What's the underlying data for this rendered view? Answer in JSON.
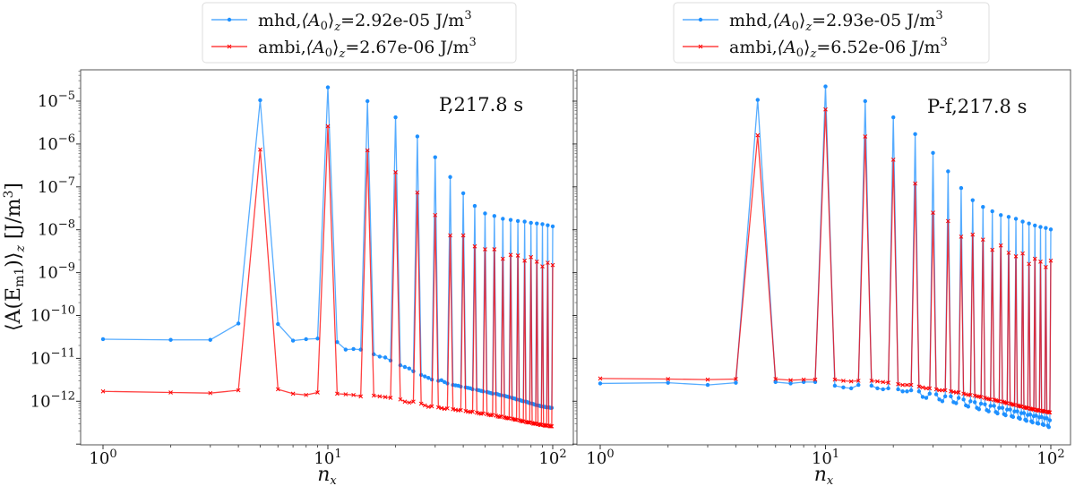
{
  "chart_data": [
    {
      "type": "line",
      "panel": "left",
      "annotation": "P,217.8 s",
      "xlabel": {
        "base": "n",
        "sub": "x"
      },
      "ylabel": {
        "open": "⟨A(E",
        "sub1": "m1",
        "close": ")⟩",
        "sub2": "z",
        "unit": " [J/m",
        "unit_exp": "3",
        "unit_close": "]"
      },
      "xscale": "log",
      "yscale": "log",
      "xlim": [
        0.77,
        123
      ],
      "ylim": [
        9.5e-14,
        5.4e-05
      ],
      "x_ticks": [
        {
          "base": "10",
          "exp": "0",
          "value": 1
        },
        {
          "base": "10",
          "exp": "1",
          "value": 10
        },
        {
          "base": "10",
          "exp": "2",
          "value": 100
        }
      ],
      "y_ticks": [
        {
          "base": "10",
          "exp": "−5",
          "value": -5
        },
        {
          "base": "10",
          "exp": "−6",
          "value": -6
        },
        {
          "base": "10",
          "exp": "−7",
          "value": -7
        },
        {
          "base": "10",
          "exp": "−8",
          "value": -8
        },
        {
          "base": "10",
          "exp": "−9",
          "value": -9
        },
        {
          "base": "10",
          "exp": "−10",
          "value": -10
        },
        {
          "base": "10",
          "exp": "−11",
          "value": -11
        },
        {
          "base": "10",
          "exp": "−12",
          "value": -12
        }
      ],
      "show_y_tick_labels": true,
      "legend_placement": "top-center-outside",
      "x_note": "n = 1..100; peaks at multiples of 5",
      "series": [
        {
          "name": "mhd",
          "a0_value": "2.92e-05",
          "color": "#1e90ff",
          "marker": "dot",
          "peak_values": [
            1.05e-05,
            2.1e-05,
            1e-05,
            4.2e-06,
            1.5e-06,
            4.9e-07,
            1.7e-07,
            7.1e-08,
            3.6e-08,
            2.4e-08,
            2.1e-08,
            1.8e-08,
            1.7e-08,
            1.6e-08,
            1.55e-08,
            1.45e-08,
            1.4e-08,
            1.35e-08,
            1.27e-08,
            1.2e-08
          ],
          "offpeak_values": [
            2.8e-11,
            2.7e-11,
            2.7e-11,
            6.5e-11,
            6.3e-11,
            2.6e-11,
            2.8e-11,
            2.9e-11,
            2.4e-11,
            1.6e-11,
            1.65e-11,
            1.6e-11,
            1.25e-11,
            1.1e-11,
            1.05e-11,
            8.9e-12,
            6.9e-12,
            6.3e-12,
            5.8e-12,
            5e-12,
            4.1e-12,
            3.8e-12,
            3.5e-12,
            3.2e-12,
            3e-12,
            3.1e-12,
            2.8e-12,
            2.6e-12,
            2.4e-12,
            2.35e-12,
            2.3e-12,
            2.2e-12,
            2.1e-12,
            2.05e-12,
            2e-12,
            1.9e-12,
            1.85e-12,
            1.8e-12,
            1.75e-12,
            1.7e-12,
            1.65e-12,
            1.6e-12,
            1.55e-12,
            1.5e-12,
            1.5e-12,
            1.45e-12,
            1.4e-12,
            1.38e-12,
            1.35e-12,
            1.3e-12,
            1.28e-12,
            1.25e-12,
            1.2e-12,
            1.17e-12,
            1.15e-12,
            1.1e-12,
            1.08e-12,
            1.05e-12,
            1.02e-12,
            1e-12,
            9.8e-13,
            9.5e-13,
            9.3e-13,
            9e-13,
            8.8e-13,
            8.6e-13,
            8.4e-13,
            8.2e-13,
            8e-13,
            7.9e-13,
            7.7e-13,
            7.6e-13,
            7.5e-13,
            7.4e-13,
            7.3e-13,
            7.2e-13,
            7.2e-13,
            7.1e-13,
            7e-13,
            7e-13
          ]
        },
        {
          "name": "ambi",
          "a0_value": "2.67e-06",
          "color": "#ff0000",
          "marker": "x",
          "peak_values": [
            7.4e-07,
            2.6e-06,
            7.1e-07,
            2.2e-07,
            7.4e-08,
            2.2e-08,
            7.4e-09,
            7.4e-09,
            4.1e-09,
            3.5e-09,
            3.5e-09,
            2.1e-09,
            2.6e-09,
            2.5e-09,
            1.9e-09,
            2.3e-09,
            1.8e-09,
            1.4e-09,
            1.7e-09,
            1.5e-09
          ],
          "offpeak_values": [
            1.7e-12,
            1.6e-12,
            1.55e-12,
            1.8e-12,
            1.9e-12,
            1.5e-12,
            1.4e-12,
            1.6e-12,
            1.5e-12,
            1.45e-12,
            1.4e-12,
            1.3e-12,
            1.35e-12,
            1.3e-12,
            1.25e-12,
            1.2e-12,
            1.1e-12,
            9.8e-13,
            9.3e-13,
            9.8e-13,
            8.8e-13,
            8e-13,
            7.4e-13,
            7.6e-13,
            7.2e-13,
            6.9e-13,
            6.6e-13,
            6.8e-13,
            6.5e-13,
            6.3e-13,
            6.1e-13,
            6.2e-13,
            5.9e-13,
            5.7e-13,
            5.6e-13,
            5.7e-13,
            5.4e-13,
            5.2e-13,
            5.1e-13,
            5.2e-13,
            5e-13,
            4.8e-13,
            4.7e-13,
            4.8e-13,
            4.6e-13,
            4.4e-13,
            4.3e-13,
            4.4e-13,
            4.2e-13,
            4.1e-13,
            4e-13,
            4e-13,
            3.9e-13,
            3.8e-13,
            3.7e-13,
            3.7e-13,
            3.6e-13,
            3.5e-13,
            3.4e-13,
            3.4e-13,
            3.3e-13,
            3.2e-13,
            3.2e-13,
            3.2e-13,
            3.1e-13,
            3e-13,
            3e-13,
            3e-13,
            2.9e-13,
            2.9e-13,
            2.8e-13,
            2.8e-13,
            2.8e-13,
            2.7e-13,
            2.7e-13,
            2.7e-13,
            2.7e-13,
            2.6e-13,
            2.6e-13,
            2.6e-13
          ]
        }
      ]
    },
    {
      "type": "line",
      "panel": "right",
      "annotation": "P-f,217.8 s",
      "xlabel": {
        "base": "n",
        "sub": "x"
      },
      "xscale": "log",
      "yscale": "log",
      "xlim": [
        0.77,
        123
      ],
      "ylim": [
        9.5e-14,
        5.4e-05
      ],
      "x_ticks": [
        {
          "base": "10",
          "exp": "0",
          "value": 1
        },
        {
          "base": "10",
          "exp": "1",
          "value": 10
        },
        {
          "base": "10",
          "exp": "2",
          "value": 100
        }
      ],
      "show_y_tick_labels": false,
      "legend_placement": "top-center-outside",
      "x_note": "n = 1..100; peaks at multiples of 5",
      "series": [
        {
          "name": "mhd",
          "a0_value": "2.93e-05",
          "color": "#1e90ff",
          "marker": "dot",
          "peak_values": [
            1.07e-05,
            2.2e-05,
            1e-05,
            4.2e-06,
            1.7e-06,
            6.2e-07,
            2.3e-07,
            9.4e-08,
            4.9e-08,
            3.4e-08,
            2.7e-08,
            2.2e-08,
            2e-08,
            1.8e-08,
            1.55e-08,
            1.4e-08,
            1.26e-08,
            1.16e-08,
            1.1e-08,
            1.02e-08
          ],
          "offpeak_values": [
            2.6e-12,
            2.7e-12,
            2.4e-12,
            2.7e-12,
            2.8e-12,
            2.6e-12,
            2.8e-12,
            2.8e-12,
            2.3e-12,
            2.1e-12,
            2e-12,
            2.4e-12,
            2.3e-12,
            2e-12,
            1.9e-12,
            2e-12,
            1.9e-12,
            1.7e-12,
            1.7e-12,
            1.8e-12,
            1.7e-12,
            1.26e-12,
            1.2e-12,
            1.5e-12,
            1.45e-12,
            1.1e-12,
            1e-12,
            1.3e-12,
            1.3e-12,
            9.5e-13,
            9e-13,
            1.2e-12,
            1.1e-12,
            8e-13,
            7.5e-13,
            1e-12,
            9.5e-13,
            7e-13,
            6.5e-13,
            8.8e-13,
            8.5e-13,
            6.2e-13,
            5.8e-13,
            7.8e-13,
            7.8e-13,
            5.6e-13,
            5.2e-13,
            7e-13,
            7e-13,
            5e-13,
            4.7e-13,
            6.4e-13,
            6.4e-13,
            4.5e-13,
            4.3e-13,
            5.8e-13,
            5.8e-13,
            4.1e-13,
            3.9e-13,
            5.3e-13,
            5.3e-13,
            3.7e-13,
            3.5e-13,
            4.8e-13,
            4.9e-13,
            3.4e-13,
            3.2e-13,
            4.5e-13,
            4.6e-13,
            3.1e-13,
            3e-13,
            4.2e-13,
            4.3e-13,
            2.9e-13,
            2.8e-13,
            4e-13,
            4e-13,
            2.7e-13,
            2.5e-13,
            3.6e-13
          ]
        },
        {
          "name": "ambi",
          "a0_value": "6.52e-06",
          "color": "#ff0000",
          "marker": "x",
          "peak_values": [
            1.6e-06,
            6.4e-06,
            1.5e-06,
            4.3e-07,
            1.2e-07,
            2.5e-08,
            1.6e-08,
            6.9e-09,
            7.7e-09,
            5.9e-09,
            3.4e-09,
            4.3e-09,
            2.9e-09,
            2.4e-09,
            2.8e-09,
            1.6e-09,
            2.1e-09,
            1.8e-09,
            1.35e-09,
            1.9e-09
          ],
          "offpeak_values": [
            3.4e-12,
            3.3e-12,
            3.2e-12,
            3.3e-12,
            3.3e-12,
            3.1e-12,
            3.2e-12,
            3.2e-12,
            3.2e-12,
            3e-12,
            2.9e-12,
            3e-12,
            3e-12,
            2.9e-12,
            2.8e-12,
            2.7e-12,
            2.5e-12,
            2.4e-12,
            2.4e-12,
            2.4e-12,
            2.2e-12,
            2.1e-12,
            2e-12,
            2e-12,
            1.9e-12,
            1.8e-12,
            1.8e-12,
            1.8e-12,
            1.7e-12,
            1.65e-12,
            1.6e-12,
            1.6e-12,
            1.5e-12,
            1.45e-12,
            1.4e-12,
            1.4e-12,
            1.35e-12,
            1.3e-12,
            1.28e-12,
            1.25e-12,
            1.2e-12,
            1.15e-12,
            1.12e-12,
            1.1e-12,
            1.08e-12,
            1.05e-12,
            1.02e-12,
            1e-12,
            9.8e-13,
            9.5e-13,
            9.2e-13,
            9e-13,
            8.8e-13,
            8.5e-13,
            8.3e-13,
            8.2e-13,
            8e-13,
            7.8e-13,
            7.6e-13,
            7.5e-13,
            7.3e-13,
            7.1e-13,
            7e-13,
            6.9e-13,
            6.7e-13,
            6.6e-13,
            6.5e-13,
            6.4e-13,
            6.3e-13,
            6.2e-13,
            6.1e-13,
            6e-13,
            6e-13,
            5.9e-13,
            5.8e-13,
            5.7e-13,
            5.7e-13,
            5.6e-13,
            5.5e-13,
            5.5e-13
          ]
        }
      ]
    }
  ],
  "legend_symbol": {
    "open": "⟨A",
    "sub": "0",
    "close": "⟩",
    "sub2": "z",
    "eq": "=",
    "unit": " J/m",
    "unit_exp": "3",
    "sep": ","
  }
}
